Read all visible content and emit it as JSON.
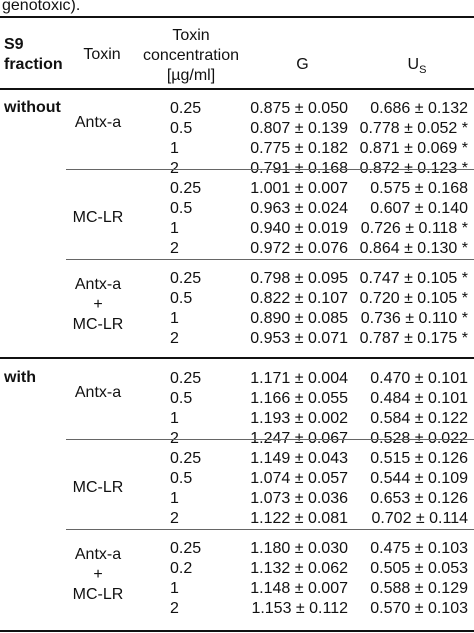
{
  "caption": "genotoxic).",
  "headers": {
    "s9": [
      "S9",
      "fraction"
    ],
    "toxin": "Toxin",
    "concentration": [
      "Toxin",
      "concentration",
      "[µg/ml]"
    ],
    "g": "G",
    "us_main": "U",
    "us_sub": "S"
  },
  "sections": [
    {
      "s9": "without",
      "groups": [
        {
          "toxin_lines": [
            "Antx-a"
          ],
          "rows": [
            {
              "conc": "0.25",
              "g": "0.875 ± 0.050",
              "us": "0.686 ± 0.132"
            },
            {
              "conc": "0.5",
              "g": "0.807 ± 0.139",
              "us": "0.778 ± 0.052 *"
            },
            {
              "conc": "1",
              "g": "0.775 ± 0.182",
              "us": "0.871 ± 0.069 *"
            },
            {
              "conc": "2",
              "g": "0.791 ± 0.168",
              "us": "0.872 ± 0.123 *"
            }
          ]
        },
        {
          "toxin_lines": [
            "MC-LR"
          ],
          "rows": [
            {
              "conc": "0.25",
              "g": "1.001 ± 0.007",
              "us": "0.575 ± 0.168"
            },
            {
              "conc": "0.5",
              "g": "0.963 ± 0.024",
              "us": "0.607 ± 0.140"
            },
            {
              "conc": "1",
              "g": "0.940 ± 0.019",
              "us": "0.726 ± 0.118 *"
            },
            {
              "conc": "2",
              "g": "0.972 ± 0.076",
              "us": "0.864 ± 0.130 *"
            }
          ]
        },
        {
          "toxin_lines": [
            "Antx-a",
            "+",
            "MC-LR"
          ],
          "rows": [
            {
              "conc": "0.25",
              "g": "0.798 ± 0.095",
              "us": "0.747 ± 0.105 *"
            },
            {
              "conc": "0.5",
              "g": "0.822 ± 0.107",
              "us": "0.720 ± 0.105 *"
            },
            {
              "conc": "1",
              "g": "0.890 ± 0.085",
              "us": "0.736 ± 0.110 *"
            },
            {
              "conc": "2",
              "g": "0.953 ± 0.071",
              "us": "0.787 ± 0.175 *"
            }
          ]
        }
      ]
    },
    {
      "s9": "with",
      "groups": [
        {
          "toxin_lines": [
            "Antx-a"
          ],
          "rows": [
            {
              "conc": "0.25",
              "g": "1.171 ± 0.004",
              "us": "0.470 ± 0.101"
            },
            {
              "conc": "0.5",
              "g": "1.166 ± 0.055",
              "us": "0.484 ± 0.101"
            },
            {
              "conc": "1",
              "g": "1.193 ± 0.002",
              "us": "0.584 ± 0.122"
            },
            {
              "conc": "2",
              "g": "1.247 ± 0.067",
              "us": "0.528 ± 0.022"
            }
          ]
        },
        {
          "toxin_lines": [
            "MC-LR"
          ],
          "rows": [
            {
              "conc": "0.25",
              "g": "1.149 ± 0.043",
              "us": "0.515 ± 0.126"
            },
            {
              "conc": "0.5",
              "g": "1.074 ± 0.057",
              "us": "0.544 ± 0.109"
            },
            {
              "conc": "1",
              "g": "1.073 ± 0.036",
              "us": "0.653 ± 0.126"
            },
            {
              "conc": "2",
              "g": "1.122 ± 0.081",
              "us": "0.702 ± 0.114"
            }
          ]
        },
        {
          "toxin_lines": [
            "Antx-a",
            "+",
            "MC-LR"
          ],
          "rows": [
            {
              "conc": "0.25",
              "g": "1.180 ± 0.030",
              "us": "0.475 ± 0.103"
            },
            {
              "conc": "0.2",
              "g": "1.132 ± 0.062",
              "us": "0.505 ± 0.053"
            },
            {
              "conc": "1",
              "g": "1.148 ± 0.007",
              "us": "0.588 ± 0.129"
            },
            {
              "conc": "2",
              "g": "1.153 ± 0.112",
              "us": "0.570 ± 0.103"
            }
          ]
        }
      ]
    }
  ]
}
